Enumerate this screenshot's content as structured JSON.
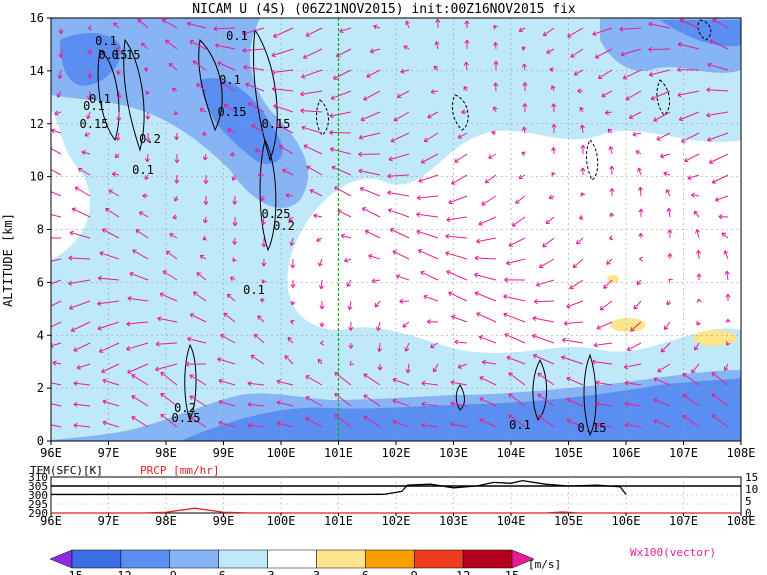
{
  "title": "NICAM U (4S) (06Z21NOV2015) init:00Z16NOV2015 fix",
  "chart_data": {
    "type": "heatmap",
    "variable": "U",
    "ylabel": "ALTITUDE [km]",
    "x_categories": [
      "96E",
      "97E",
      "98E",
      "99E",
      "100E",
      "101E",
      "102E",
      "103E",
      "104E",
      "105E",
      "106E",
      "107E",
      "108E"
    ],
    "y_ticks": [
      "0",
      "2",
      "4",
      "6",
      "8",
      "10",
      "12",
      "14",
      "16"
    ],
    "xlim": [
      96,
      108
    ],
    "ylim": [
      0,
      16
    ],
    "marker_longitude": 101,
    "contour_labels": [
      "0.1",
      "0.15",
      "0.1",
      "0.15",
      "0.15",
      "0.1",
      "0.15",
      "0.1",
      "0.2",
      "0.1",
      "0.1",
      "0.15",
      "0.25",
      "0.2",
      "0.1",
      "0.2",
      "0.15",
      "0.1",
      "0.15"
    ],
    "vector_label": "Wx100(vector)",
    "colorbar": {
      "unit": "[m/s]",
      "ticks": [
        "-15",
        "-12",
        "-9",
        "-6",
        "-3",
        "3",
        "6",
        "9",
        "12",
        "15"
      ],
      "colors": [
        "#8a2be2",
        "#3c6ee6",
        "#5a8ef0",
        "#87b4f5",
        "#bfe8f8",
        "#ffffff",
        "#fce58a",
        "#f6a000",
        "#ee3c1e",
        "#b4001e",
        "#e61e96"
      ]
    },
    "bottom_panel": {
      "left_label": "TEM(SFC)[K]",
      "right_label": "PRCP [mm/hr]",
      "left_ticks": [
        "310",
        "305",
        "300",
        "295",
        "290"
      ],
      "right_ticks": [
        "15",
        "10",
        "5",
        "0"
      ],
      "x_categories": [
        "96E",
        "97E",
        "98E",
        "99E",
        "100E",
        "101E",
        "102E",
        "103E",
        "104E",
        "105E",
        "106E",
        "107E",
        "108E"
      ],
      "temperature_series": [
        [
          96,
          300.3
        ],
        [
          97,
          300.3
        ],
        [
          98,
          300.3
        ],
        [
          99,
          300.3
        ],
        [
          100,
          300.3
        ],
        [
          101,
          300.3
        ],
        [
          101.8,
          300.4
        ],
        [
          102.1,
          302
        ],
        [
          102.2,
          305.5
        ],
        [
          102.6,
          306
        ],
        [
          103,
          304
        ],
        [
          103.4,
          305
        ],
        [
          103.7,
          307
        ],
        [
          104,
          306.5
        ],
        [
          104.2,
          308
        ],
        [
          104.6,
          306
        ],
        [
          105,
          305
        ],
        [
          105.5,
          305.5
        ],
        [
          105.9,
          304.5
        ],
        [
          106,
          300.3
        ]
      ],
      "precip_series": [
        [
          96,
          0
        ],
        [
          97.6,
          0
        ],
        [
          98,
          0.3
        ],
        [
          98.5,
          2
        ],
        [
          99,
          0.3
        ],
        [
          99.5,
          0
        ],
        [
          101,
          0
        ],
        [
          104.6,
          0
        ],
        [
          104.9,
          0.4
        ],
        [
          105.2,
          0
        ],
        [
          108,
          0
        ]
      ]
    }
  }
}
